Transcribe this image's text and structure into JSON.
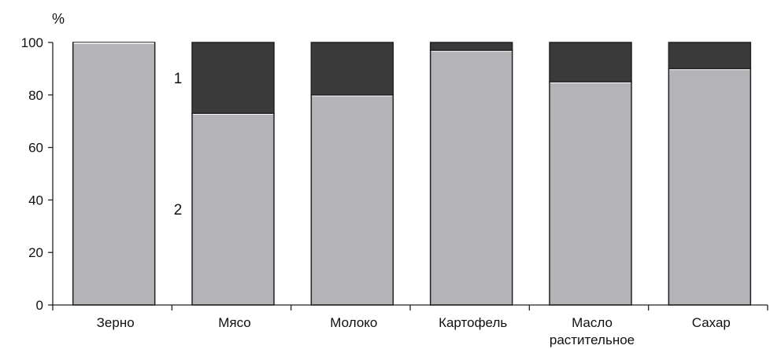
{
  "chart_data": {
    "type": "bar",
    "stacked": true,
    "ylabel": "%",
    "ylim": [
      0,
      100
    ],
    "yticks": [
      0,
      20,
      40,
      60,
      80,
      100
    ],
    "grid": false,
    "categories": [
      "Зерно",
      "Мясо",
      "Молоко",
      "Картофель",
      [
        "Масло",
        "растительное"
      ],
      "Сахар"
    ],
    "series": [
      {
        "name": "2",
        "color": "#b4b4b8",
        "values": [
          100,
          73,
          80,
          97,
          85,
          90
        ]
      },
      {
        "name": "1",
        "color": "#3a3a3a",
        "values": [
          0,
          27,
          20,
          3,
          15,
          10
        ]
      }
    ],
    "series_marker_anchor": "Мясо"
  }
}
